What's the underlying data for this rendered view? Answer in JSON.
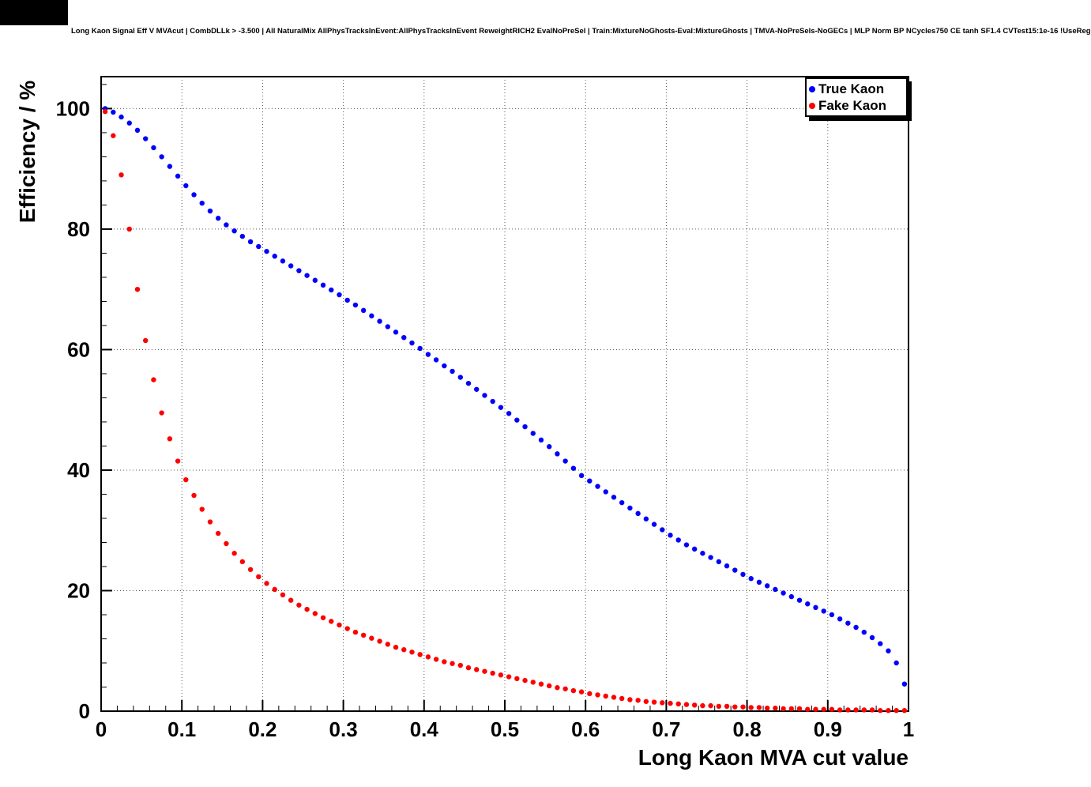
{
  "chart_data": {
    "type": "scatter",
    "title": "Long Kaon Signal Eff V MVAcut | CombDLLk > -3.500 | All NaturalMix AllPhysTracksInEvent:AllPhysTracksInEvent ReweightRICH2 EvalNoPreSel | Train:MixtureNoGhosts-Eval:MixtureGhosts | TMVA-NoPreSels-NoGECs | MLP Norm BP NCycles750 CE tanh SF1.4 CVTest15:1e-16 !UseReg",
    "xlabel": "Long Kaon MVA cut value",
    "ylabel": "Efficiency / %",
    "xlim": [
      0,
      1
    ],
    "ylim": [
      0,
      105.3
    ],
    "grid": true,
    "grid_style": "dotted",
    "legend_position": "top-right",
    "x_ticks": [
      0,
      0.1,
      0.2,
      0.3,
      0.4,
      0.5,
      0.6,
      0.7,
      0.8,
      0.9,
      1
    ],
    "x_tick_labels": [
      "0",
      "0.1",
      "0.2",
      "0.3",
      "0.4",
      "0.5",
      "0.6",
      "0.7",
      "0.8",
      "0.9",
      "1"
    ],
    "x_minor_step": 0.02,
    "y_ticks": [
      0,
      20,
      40,
      60,
      80,
      100
    ],
    "y_tick_labels": [
      "0",
      "20",
      "40",
      "60",
      "80",
      "100"
    ],
    "y_minor_step": 4,
    "marker_radius": 3.2,
    "x": [
      0.005,
      0.015,
      0.025,
      0.035,
      0.045,
      0.055,
      0.065,
      0.075,
      0.085,
      0.095,
      0.105,
      0.115,
      0.125,
      0.135,
      0.145,
      0.155,
      0.165,
      0.175,
      0.185,
      0.195,
      0.205,
      0.215,
      0.225,
      0.235,
      0.245,
      0.255,
      0.265,
      0.275,
      0.285,
      0.295,
      0.305,
      0.315,
      0.325,
      0.335,
      0.345,
      0.355,
      0.365,
      0.375,
      0.385,
      0.395,
      0.405,
      0.415,
      0.425,
      0.435,
      0.445,
      0.455,
      0.465,
      0.475,
      0.485,
      0.495,
      0.505,
      0.515,
      0.525,
      0.535,
      0.545,
      0.555,
      0.565,
      0.575,
      0.585,
      0.595,
      0.605,
      0.615,
      0.625,
      0.635,
      0.645,
      0.655,
      0.665,
      0.675,
      0.685,
      0.695,
      0.705,
      0.715,
      0.725,
      0.735,
      0.745,
      0.755,
      0.765,
      0.775,
      0.785,
      0.795,
      0.805,
      0.815,
      0.825,
      0.835,
      0.845,
      0.855,
      0.865,
      0.875,
      0.885,
      0.895,
      0.905,
      0.915,
      0.925,
      0.935,
      0.945,
      0.955,
      0.965,
      0.975,
      0.985,
      0.995
    ],
    "series": [
      {
        "name": "True Kaon",
        "color": "#0000ff",
        "values": [
          100.0,
          99.4,
          98.6,
          97.6,
          96.4,
          95.0,
          93.5,
          92.0,
          90.4,
          88.8,
          87.2,
          85.7,
          84.3,
          83.0,
          81.8,
          80.7,
          79.7,
          78.8,
          77.9,
          77.1,
          76.3,
          75.5,
          74.7,
          73.9,
          73.1,
          72.3,
          71.5,
          70.7,
          69.9,
          69.1,
          68.2,
          67.4,
          66.5,
          65.6,
          64.7,
          63.8,
          62.9,
          62.0,
          61.1,
          60.2,
          59.2,
          58.3,
          57.3,
          56.4,
          55.4,
          54.4,
          53.4,
          52.4,
          51.4,
          50.4,
          49.4,
          48.3,
          47.2,
          46.1,
          45.0,
          43.9,
          42.7,
          41.5,
          40.3,
          39.1,
          38.2,
          37.3,
          36.4,
          35.5,
          34.6,
          33.7,
          32.8,
          31.9,
          31.0,
          30.1,
          29.2,
          28.4,
          27.6,
          26.9,
          26.2,
          25.5,
          24.8,
          24.1,
          23.4,
          22.7,
          22.0,
          21.4,
          20.8,
          20.2,
          19.6,
          19.0,
          18.4,
          17.8,
          17.2,
          16.6,
          16.0,
          15.3,
          14.6,
          13.9,
          13.1,
          12.2,
          11.2,
          10.0,
          8.0,
          4.5
        ]
      },
      {
        "name": "Fake Kaon",
        "color": "#ff0000",
        "values": [
          99.5,
          95.5,
          89.0,
          80.0,
          70.0,
          61.5,
          55.0,
          49.5,
          45.2,
          41.5,
          38.4,
          35.8,
          33.5,
          31.4,
          29.5,
          27.8,
          26.2,
          24.8,
          23.5,
          22.3,
          21.2,
          20.2,
          19.3,
          18.4,
          17.6,
          16.9,
          16.2,
          15.5,
          14.9,
          14.3,
          13.7,
          13.1,
          12.6,
          12.1,
          11.6,
          11.1,
          10.6,
          10.2,
          9.8,
          9.4,
          9.0,
          8.6,
          8.2,
          7.9,
          7.6,
          7.2,
          6.9,
          6.6,
          6.3,
          6.0,
          5.7,
          5.4,
          5.1,
          4.8,
          4.5,
          4.2,
          3.9,
          3.7,
          3.4,
          3.2,
          2.9,
          2.7,
          2.5,
          2.3,
          2.1,
          1.9,
          1.8,
          1.6,
          1.5,
          1.4,
          1.3,
          1.2,
          1.1,
          1.0,
          0.9,
          0.9,
          0.8,
          0.8,
          0.7,
          0.7,
          0.6,
          0.6,
          0.5,
          0.5,
          0.4,
          0.4,
          0.4,
          0.3,
          0.3,
          0.3,
          0.3,
          0.2,
          0.2,
          0.2,
          0.2,
          0.2,
          0.1,
          0.1,
          0.1,
          0.1
        ]
      }
    ]
  },
  "colors": {
    "frame": "#000000",
    "grid": "#555555",
    "background": "#ffffff"
  }
}
